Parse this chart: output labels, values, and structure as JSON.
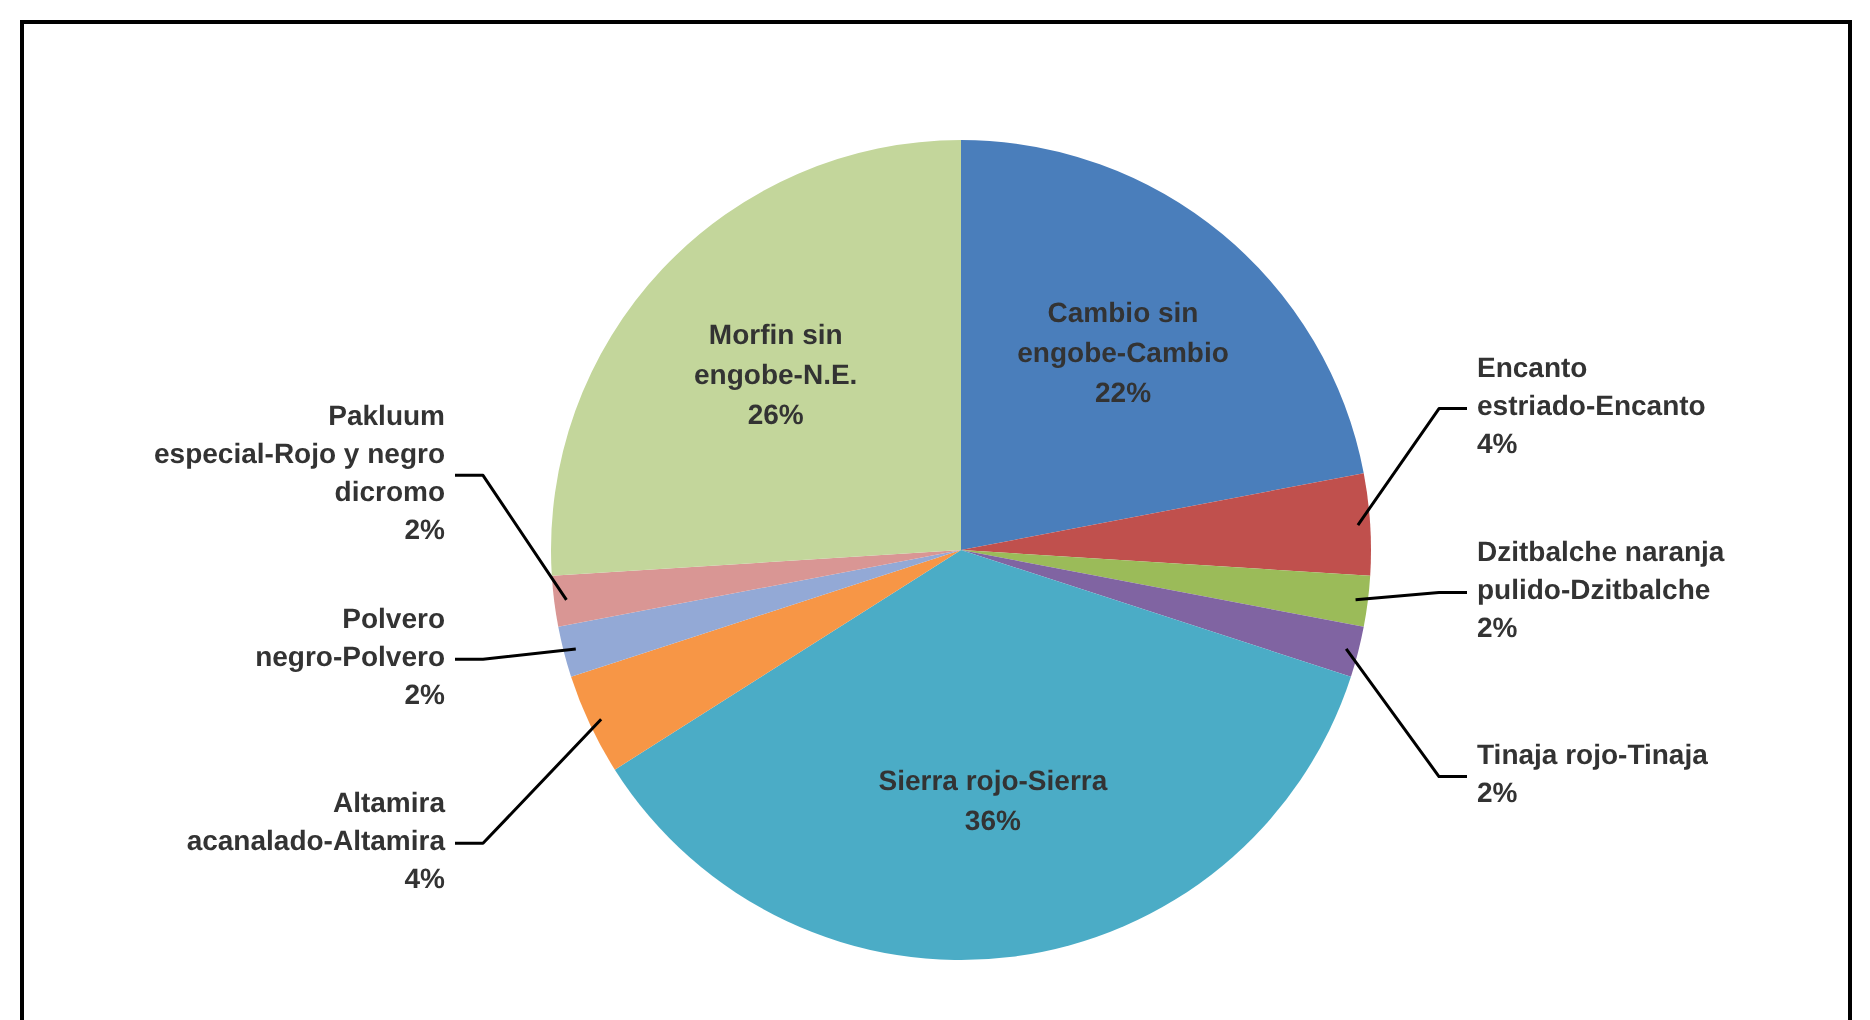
{
  "chart_data": {
    "type": "pie",
    "categories": [
      "Cambio sin engobe-Cambio",
      "Encanto estriado-Encanto",
      "Dzitbalche naranja pulido-Dzitbalche",
      "Tinaja rojo-Tinaja",
      "Sierra rojo-Sierra",
      "Altamira acanalado-Altamira",
      "Polvero negro-Polvero",
      "Pakluum especial-Rojo y negro dicromo",
      "Morfin sin engobe-N.E."
    ],
    "values": [
      22,
      4,
      2,
      2,
      36,
      4,
      2,
      2,
      26
    ],
    "value_labels": [
      "22%",
      "4%",
      "2%",
      "2%",
      "36%",
      "4%",
      "2%",
      "2%",
      "26%"
    ],
    "colors": [
      "#4a7ebb",
      "#c0504d",
      "#9bbb59",
      "#8064a2",
      "#4bacc6",
      "#f79646",
      "#93a9d6",
      "#d99694",
      "#c3d69b"
    ],
    "legend": false
  }
}
